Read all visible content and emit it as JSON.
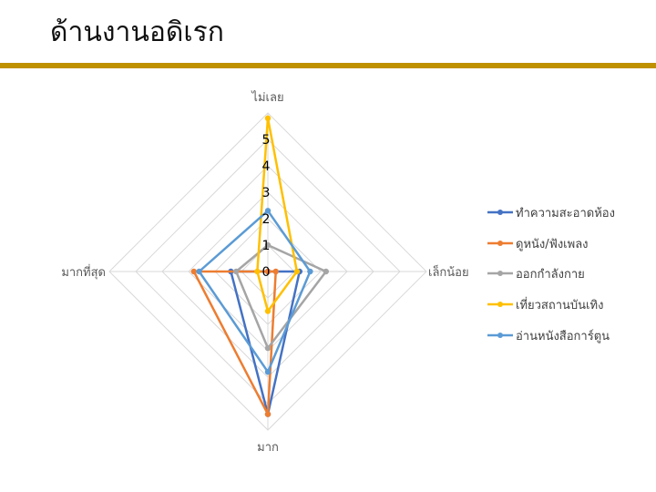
{
  "slide": {
    "title": "ด้านงานอดิเรก"
  },
  "chart_data": {
    "type": "radar",
    "axes": [
      "ไม่เลย",
      "เล็กน้อย",
      "มาก",
      "มากที่สุด"
    ],
    "rlim": [
      0,
      5
    ],
    "tick_labels": [
      "0",
      "1",
      "2",
      "3",
      "4",
      "5"
    ],
    "grid": true,
    "legend_position": "right",
    "series": [
      {
        "name": "ทำความสะอาดห้อง",
        "values": [
          0,
          1.2,
          5.4,
          1.4
        ],
        "color": "#4472c4"
      },
      {
        "name": "ดูหนัง/ฟังเพลง",
        "values": [
          0,
          0.3,
          5.4,
          2.8
        ],
        "color": "#ed7d31"
      },
      {
        "name": "ออกกำลังกาย",
        "values": [
          1,
          2.2,
          2.9,
          1.2
        ],
        "color": "#a5a5a5"
      },
      {
        "name": "เที่ยวสถานบันเทิง",
        "values": [
          5.8,
          1.1,
          1.5,
          0.4
        ],
        "color": "#ffc000"
      },
      {
        "name": "อ่านหนังสือการ์ตูน",
        "values": [
          2.3,
          1.6,
          3.8,
          2.6
        ],
        "color": "#5b9bd5"
      }
    ]
  }
}
